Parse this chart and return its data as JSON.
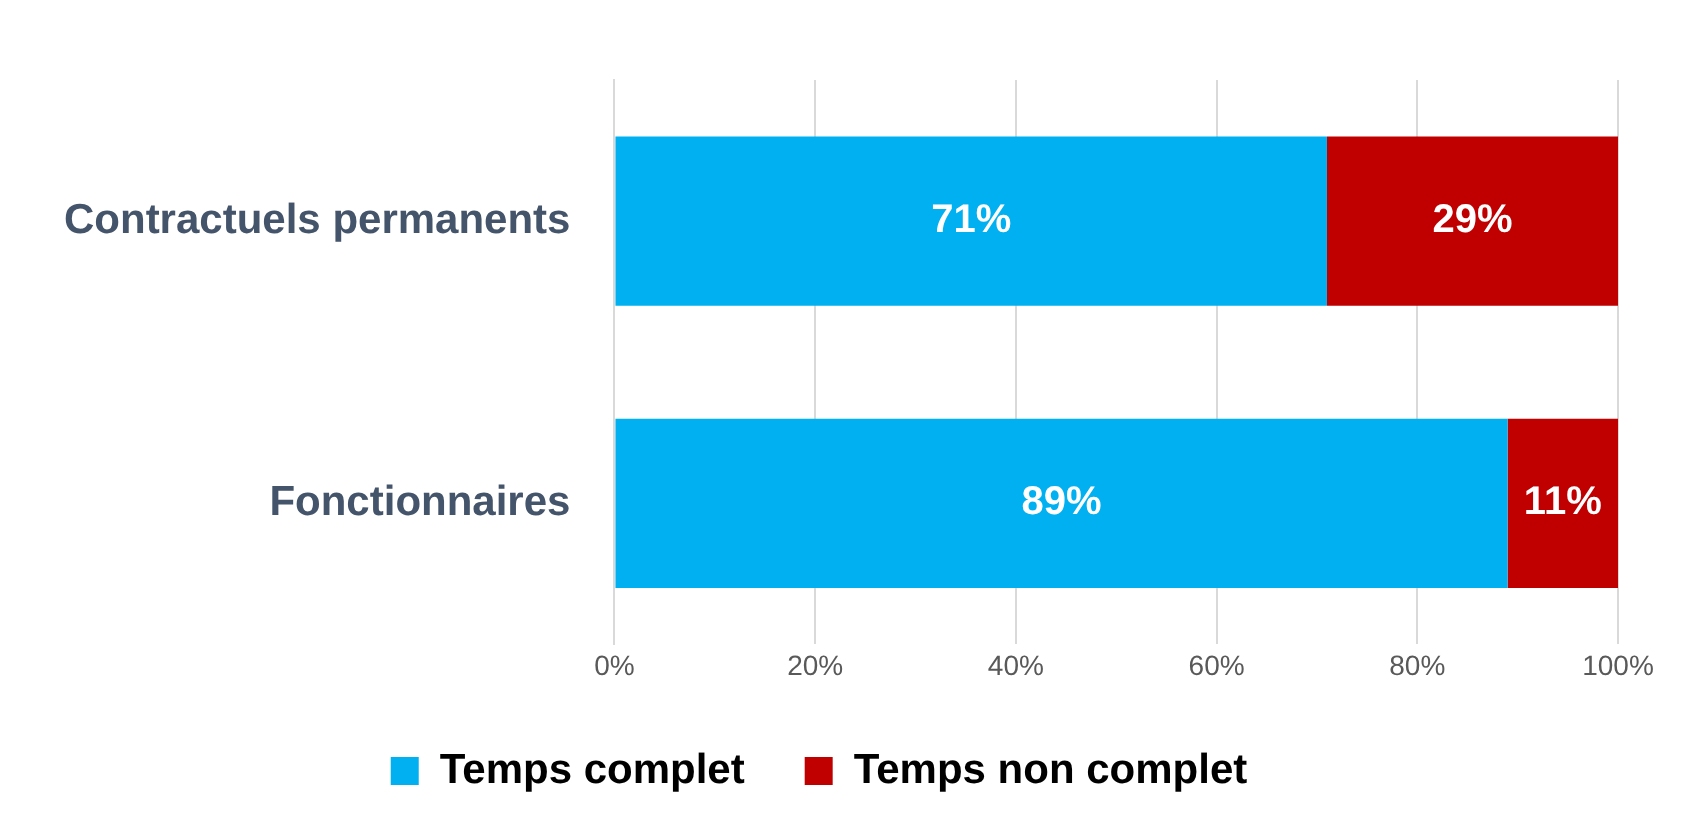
{
  "chart_data": {
    "type": "bar",
    "orientation": "horizontal",
    "stacked": true,
    "categories": [
      "Contractuels permanents",
      "Fonctionnaires"
    ],
    "series": [
      {
        "name": "Temps complet",
        "color": "#00b0f0",
        "values": [
          71,
          89
        ],
        "value_labels": [
          "71%",
          "89%"
        ]
      },
      {
        "name": "Temps non complet",
        "color": "#c00000",
        "values": [
          29,
          11
        ],
        "value_labels": [
          "29%",
          "11%"
        ]
      }
    ],
    "xlim": [
      0,
      100
    ],
    "xticks": [
      {
        "value": 0,
        "label": "0%"
      },
      {
        "value": 20,
        "label": "20%"
      },
      {
        "value": 40,
        "label": "40%"
      },
      {
        "value": 60,
        "label": "60%"
      },
      {
        "value": 80,
        "label": "80%"
      },
      {
        "value": 100,
        "label": "100%"
      }
    ],
    "grid": "x",
    "legend": "bottom"
  }
}
